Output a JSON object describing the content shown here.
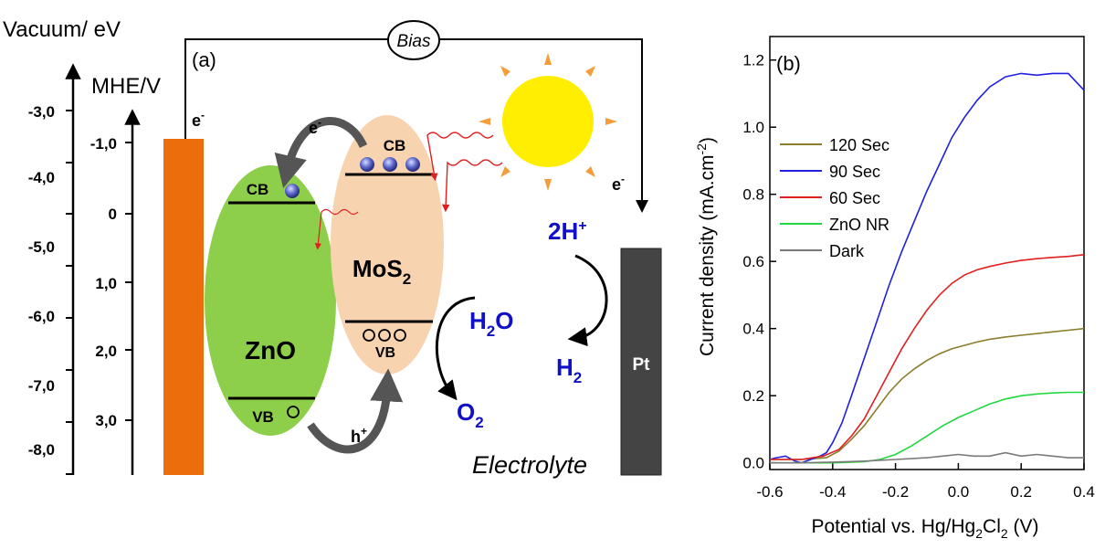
{
  "panel_a": {
    "label": "(a)",
    "vacuum_axis_title": "Vacuum/ eV",
    "mhe_axis_title": "MHE/V",
    "vacuum_ticks": [
      "-3,0",
      "-4,0",
      "-5,0",
      "-6,0",
      "-7,0",
      "-8,0"
    ],
    "mhe_ticks": [
      "-1,0",
      "0",
      "1,0",
      "2,0",
      "3,0"
    ],
    "bias_label": "Bias",
    "electron_symbol": "e",
    "minus_sign": "-",
    "plus_sign": "+",
    "hole_symbol": "h",
    "zno": {
      "label": "ZnO",
      "cb": "CB",
      "vb": "VB"
    },
    "mos2": {
      "label_main": "MoS",
      "label_sub": "2",
      "cb": "CB",
      "vb": "VB"
    },
    "h_plus_prefix": "2H",
    "h2_main": "H",
    "h2_sub": "2",
    "h2o_main": "H",
    "h2o_sub": "2",
    "h2o_tail": "O",
    "o2_main": "O",
    "o2_sub": "2",
    "pt_label": "Pt",
    "electrolyte_label": "Electrolyte",
    "colors": {
      "electrode": "#ec6d0c",
      "zno": "#8dcf4a",
      "mos2": "#f8d3b0",
      "pt": "#444444",
      "species": "#1010c8",
      "sun": "#ffee00",
      "sun_rays": "#f59d3a"
    }
  },
  "panel_b": {
    "label": "(b)",
    "ylabel_main": "Current density (mA.cm",
    "ylabel_sup": "-2",
    "ylabel_tail": ")",
    "xlabel_main": "Potential vs. Hg/Hg",
    "xlabel_sub": "2",
    "xlabel_mid": "Cl",
    "xlabel_sub2": "2",
    "xlabel_tail": " (V)",
    "x_ticks": [
      "-0.6",
      "-0.4",
      "-0.2",
      "0.0",
      "0.2",
      "0.4"
    ],
    "y_ticks": [
      "0.0",
      "0.2",
      "0.4",
      "0.6",
      "0.8",
      "1.0",
      "1.2"
    ]
  },
  "chart_data": {
    "type": "line",
    "xlabel": "Potential vs. Hg/Hg2Cl2 (V)",
    "ylabel": "Current density (mA.cm-2)",
    "xlim": [
      -0.6,
      0.4
    ],
    "ylim": [
      -0.02,
      1.27
    ],
    "legend_position": "upper-left",
    "series": [
      {
        "name": "120 Sec",
        "color": "#8b7d2b",
        "x": [
          -0.6,
          -0.5,
          -0.42,
          -0.38,
          -0.34,
          -0.3,
          -0.26,
          -0.22,
          -0.18,
          -0.14,
          -0.1,
          -0.06,
          -0.02,
          0.02,
          0.06,
          0.1,
          0.15,
          0.2,
          0.25,
          0.3,
          0.35,
          0.4
        ],
        "y": [
          0.01,
          0.01,
          0.015,
          0.035,
          0.07,
          0.11,
          0.16,
          0.21,
          0.25,
          0.28,
          0.305,
          0.325,
          0.34,
          0.35,
          0.36,
          0.368,
          0.375,
          0.38,
          0.385,
          0.39,
          0.395,
          0.4
        ]
      },
      {
        "name": "90 Sec",
        "color": "#2020e0",
        "x": [
          -0.6,
          -0.58,
          -0.55,
          -0.52,
          -0.5,
          -0.47,
          -0.44,
          -0.42,
          -0.4,
          -0.37,
          -0.34,
          -0.3,
          -0.26,
          -0.22,
          -0.18,
          -0.14,
          -0.1,
          -0.06,
          -0.02,
          0.02,
          0.06,
          0.1,
          0.15,
          0.2,
          0.25,
          0.3,
          0.35,
          0.38,
          0.4
        ],
        "y": [
          0.01,
          0.015,
          0.02,
          0.005,
          0.0,
          0.01,
          0.02,
          0.03,
          0.06,
          0.12,
          0.2,
          0.31,
          0.42,
          0.53,
          0.63,
          0.72,
          0.81,
          0.89,
          0.97,
          1.03,
          1.08,
          1.12,
          1.15,
          1.16,
          1.155,
          1.16,
          1.16,
          1.13,
          1.11
        ]
      },
      {
        "name": "60 Sec",
        "color": "#e02020",
        "x": [
          -0.6,
          -0.5,
          -0.43,
          -0.38,
          -0.34,
          -0.3,
          -0.26,
          -0.22,
          -0.18,
          -0.14,
          -0.1,
          -0.06,
          -0.02,
          0.02,
          0.06,
          0.1,
          0.15,
          0.2,
          0.25,
          0.3,
          0.35,
          0.4
        ],
        "y": [
          0.01,
          0.01,
          0.02,
          0.04,
          0.08,
          0.13,
          0.2,
          0.27,
          0.34,
          0.4,
          0.455,
          0.5,
          0.535,
          0.56,
          0.575,
          0.585,
          0.595,
          0.603,
          0.608,
          0.612,
          0.615,
          0.62
        ]
      },
      {
        "name": "ZnO NR",
        "color": "#20d840",
        "x": [
          -0.6,
          -0.4,
          -0.3,
          -0.25,
          -0.2,
          -0.15,
          -0.1,
          -0.05,
          0.0,
          0.05,
          0.1,
          0.15,
          0.2,
          0.25,
          0.3,
          0.35,
          0.4
        ],
        "y": [
          0.0,
          0.0,
          0.003,
          0.01,
          0.025,
          0.05,
          0.08,
          0.11,
          0.135,
          0.155,
          0.175,
          0.19,
          0.2,
          0.205,
          0.208,
          0.21,
          0.21
        ]
      },
      {
        "name": "Dark",
        "color": "#7a7a7a",
        "x": [
          -0.6,
          -0.5,
          -0.4,
          -0.3,
          -0.2,
          -0.1,
          -0.05,
          0.0,
          0.05,
          0.1,
          0.15,
          0.2,
          0.25,
          0.3,
          0.35,
          0.4
        ],
        "y": [
          0.0,
          0.0,
          0.002,
          0.005,
          0.01,
          0.015,
          0.02,
          0.025,
          0.02,
          0.02,
          0.03,
          0.02,
          0.025,
          0.02,
          0.015,
          0.015
        ]
      }
    ]
  }
}
